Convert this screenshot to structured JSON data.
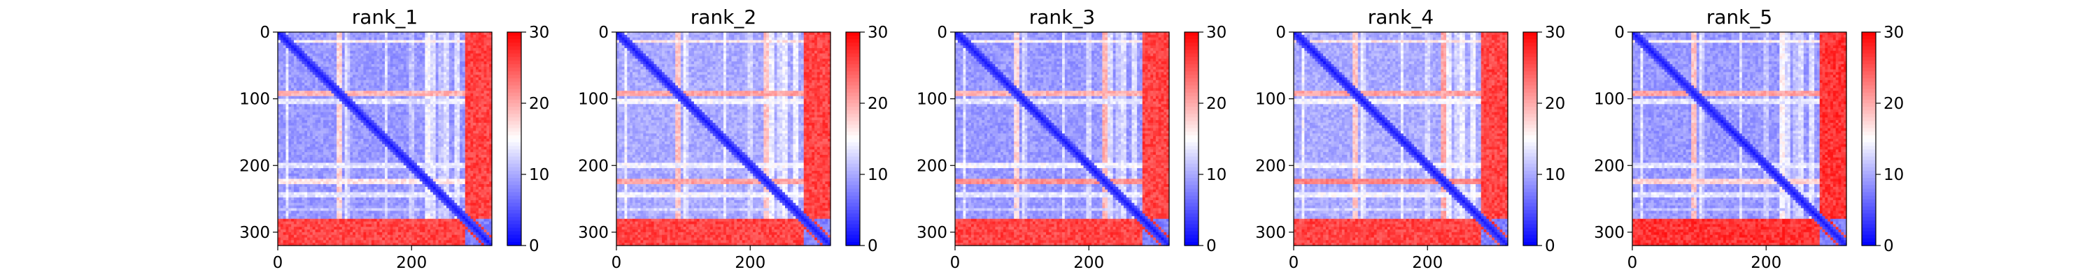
{
  "figure": {
    "background": "#ffffff",
    "colormap": [
      "#0000ff",
      "#ffffff",
      "#ff0000"
    ]
  },
  "chart_data": [
    {
      "type": "heatmap",
      "title": "rank_1",
      "xlabel": "",
      "ylabel": "",
      "xlim": [
        0,
        320
      ],
      "ylim": [
        320,
        0
      ],
      "x_ticks": [
        0,
        200
      ],
      "y_ticks": [
        0,
        100,
        200,
        300
      ],
      "grid": false,
      "colorbar": {
        "range": [
          0,
          30
        ],
        "ticks": [
          0,
          10,
          20,
          30
        ],
        "colormap": "bwr"
      },
      "pattern": {
        "n": 320,
        "base": 9,
        "diagonal_width": 12,
        "hot_rows": [
          [
            10,
            14,
            16
          ],
          [
            85,
            92,
            20
          ],
          [
            100,
            104,
            14
          ],
          [
            195,
            200,
            14
          ],
          [
            220,
            226,
            17
          ],
          [
            240,
            244,
            14
          ],
          [
            262,
            266,
            12
          ]
        ],
        "bottom_block": [
          278,
          320,
          28
        ],
        "right_block": [
          290,
          320,
          28
        ],
        "stripe_cols": [
          100,
          160,
          230,
          250,
          265
        ]
      }
    },
    {
      "type": "heatmap",
      "title": "rank_2",
      "xlabel": "",
      "ylabel": "",
      "xlim": [
        0,
        320
      ],
      "ylim": [
        320,
        0
      ],
      "x_ticks": [
        0,
        200
      ],
      "y_ticks": [
        0,
        100,
        200,
        300
      ],
      "grid": false,
      "colorbar": {
        "range": [
          0,
          30
        ],
        "ticks": [
          0,
          10,
          20,
          30
        ],
        "colormap": "bwr"
      },
      "pattern": {
        "n": 320,
        "base": 10,
        "diagonal_width": 12,
        "hot_rows": [
          [
            10,
            14,
            17
          ],
          [
            85,
            92,
            21
          ],
          [
            100,
            104,
            15
          ],
          [
            195,
            200,
            15
          ],
          [
            218,
            226,
            21
          ],
          [
            240,
            244,
            15
          ],
          [
            262,
            266,
            13
          ]
        ],
        "bottom_block": [
          278,
          320,
          28
        ],
        "right_block": [
          295,
          320,
          28
        ],
        "stripe_cols": [
          100,
          160,
          230,
          250,
          265
        ]
      }
    },
    {
      "type": "heatmap",
      "title": "rank_3",
      "xlabel": "",
      "ylabel": "",
      "xlim": [
        0,
        320
      ],
      "ylim": [
        320,
        0
      ],
      "x_ticks": [
        0,
        200
      ],
      "y_ticks": [
        0,
        100,
        200,
        300
      ],
      "grid": false,
      "colorbar": {
        "range": [
          0,
          30
        ],
        "ticks": [
          0,
          10,
          20,
          30
        ],
        "colormap": "bwr"
      },
      "pattern": {
        "n": 320,
        "base": 9,
        "diagonal_width": 12,
        "hot_rows": [
          [
            10,
            14,
            16
          ],
          [
            85,
            92,
            20
          ],
          [
            100,
            104,
            14
          ],
          [
            195,
            200,
            15
          ],
          [
            218,
            227,
            22
          ],
          [
            240,
            244,
            14
          ],
          [
            262,
            266,
            12
          ]
        ],
        "bottom_block": [
          278,
          320,
          28
        ],
        "right_block": [
          295,
          320,
          28
        ],
        "stripe_cols": [
          100,
          160,
          230,
          250,
          265
        ]
      }
    },
    {
      "type": "heatmap",
      "title": "rank_4",
      "xlabel": "",
      "ylabel": "",
      "xlim": [
        0,
        320
      ],
      "ylim": [
        320,
        0
      ],
      "x_ticks": [
        0,
        200
      ],
      "y_ticks": [
        0,
        100,
        200,
        300
      ],
      "grid": false,
      "colorbar": {
        "range": [
          0,
          30
        ],
        "ticks": [
          0,
          10,
          20,
          30
        ],
        "colormap": "bwr"
      },
      "pattern": {
        "n": 320,
        "base": 10,
        "diagonal_width": 12,
        "hot_rows": [
          [
            10,
            14,
            17
          ],
          [
            85,
            92,
            21
          ],
          [
            100,
            104,
            15
          ],
          [
            195,
            200,
            15
          ],
          [
            218,
            227,
            23
          ],
          [
            240,
            244,
            15
          ],
          [
            262,
            266,
            13
          ]
        ],
        "bottom_block": [
          278,
          320,
          28
        ],
        "right_block": [
          295,
          320,
          28
        ],
        "stripe_cols": [
          100,
          160,
          230,
          250,
          265
        ]
      }
    },
    {
      "type": "heatmap",
      "title": "rank_5",
      "xlabel": "",
      "ylabel": "",
      "xlim": [
        0,
        320
      ],
      "ylim": [
        320,
        0
      ],
      "x_ticks": [
        0,
        200
      ],
      "y_ticks": [
        0,
        100,
        200,
        300
      ],
      "grid": false,
      "colorbar": {
        "range": [
          0,
          30
        ],
        "ticks": [
          0,
          10,
          20,
          30
        ],
        "colormap": "bwr"
      },
      "pattern": {
        "n": 320,
        "base": 9,
        "diagonal_width": 12,
        "hot_rows": [
          [
            10,
            14,
            16
          ],
          [
            85,
            92,
            21
          ],
          [
            100,
            104,
            14
          ],
          [
            195,
            200,
            14
          ],
          [
            220,
            226,
            18
          ],
          [
            240,
            244,
            14
          ],
          [
            262,
            266,
            12
          ]
        ],
        "bottom_block": [
          278,
          320,
          29
        ],
        "right_block": [
          290,
          320,
          29
        ],
        "stripe_cols": [
          100,
          160,
          230,
          250,
          265
        ]
      }
    }
  ]
}
